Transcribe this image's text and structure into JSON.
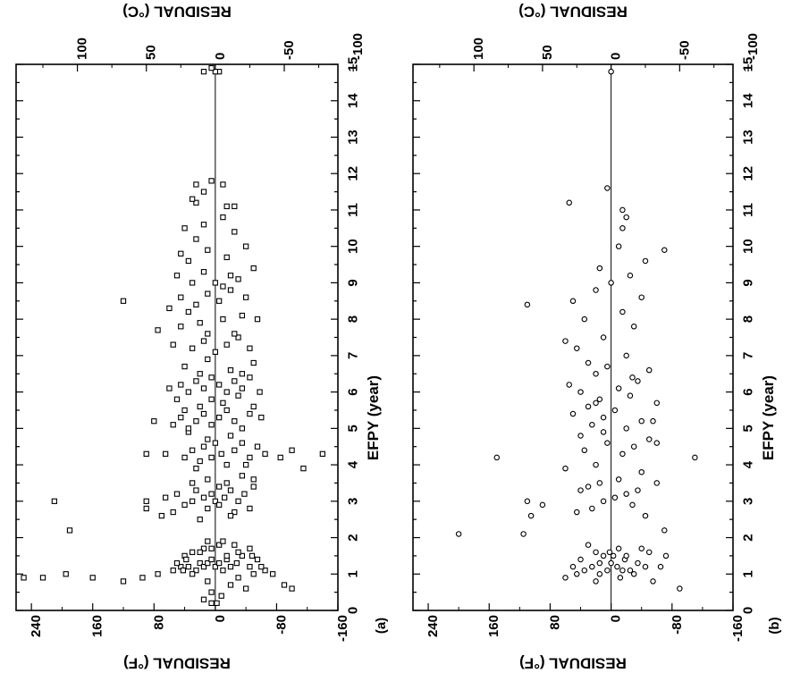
{
  "chart_data": [
    {
      "type": "scatter",
      "panel_label": "(a)",
      "marker": "square",
      "orientation": "figure rotated 90 degrees counter-clockwise",
      "xlabel": "EFPY (year)",
      "ylabel_left": "RESIDUAL (°F)",
      "ylabel_right": "RESIDUAL (°C)",
      "xlim": [
        0,
        15
      ],
      "ylim": [
        -160,
        260
      ],
      "x_ticks": [
        "0",
        "1",
        "2",
        "3",
        "4",
        "5",
        "6",
        "7",
        "8",
        "9",
        "10",
        "11",
        "12",
        "13",
        "14",
        "15"
      ],
      "y_ticks_f": [
        "240",
        "160",
        "80",
        "0",
        "-80",
        "-160"
      ],
      "y_ticks_c": [
        "100",
        "50",
        "0",
        "-50",
        "-100"
      ],
      "zero_line": true,
      "points": [
        [
          0.9,
          250
        ],
        [
          0.9,
          225
        ],
        [
          1.0,
          195
        ],
        [
          0.9,
          160
        ],
        [
          0.8,
          120
        ],
        [
          0.9,
          95
        ],
        [
          1.0,
          75
        ],
        [
          1.1,
          55
        ],
        [
          1.2,
          45
        ],
        [
          1.2,
          35
        ],
        [
          1.1,
          25
        ],
        [
          1.3,
          20
        ],
        [
          1.2,
          15
        ],
        [
          1.3,
          10
        ],
        [
          1.4,
          5
        ],
        [
          1.2,
          0
        ],
        [
          1.3,
          -5
        ],
        [
          1.1,
          -10
        ],
        [
          1.4,
          -15
        ],
        [
          1.2,
          -20
        ],
        [
          1.3,
          -28
        ],
        [
          1.5,
          -35
        ],
        [
          1.2,
          -45
        ],
        [
          1.4,
          -55
        ],
        [
          1.1,
          -65
        ],
        [
          1.0,
          -75
        ],
        [
          0.7,
          -90
        ],
        [
          0.6,
          -100
        ],
        [
          0.8,
          10
        ],
        [
          0.7,
          -20
        ],
        [
          0.5,
          5
        ],
        [
          0.6,
          -40
        ],
        [
          1.6,
          30
        ],
        [
          1.7,
          15
        ],
        [
          1.8,
          -5
        ],
        [
          1.6,
          -30
        ],
        [
          1.7,
          -45
        ],
        [
          1.9,
          10
        ],
        [
          1.5,
          40
        ],
        [
          1.8,
          -25
        ],
        [
          1.5,
          -15
        ],
        [
          1.6,
          20
        ],
        [
          1.4,
          38
        ],
        [
          1.5,
          -48
        ],
        [
          1.9,
          -10
        ],
        [
          1.0,
          30
        ],
        [
          0.9,
          -30
        ],
        [
          1.1,
          42
        ],
        [
          1.0,
          -50
        ],
        [
          1.7,
          5
        ],
        [
          1.3,
          50
        ],
        [
          1.2,
          -60
        ],
        [
          0.3,
          15
        ],
        [
          0.4,
          -8
        ],
        [
          0.2,
          5
        ],
        [
          0.2,
          -2
        ],
        [
          2.2,
          190
        ],
        [
          3.0,
          210
        ],
        [
          2.8,
          90
        ],
        [
          3.0,
          90
        ],
        [
          2.6,
          70
        ],
        [
          3.1,
          65
        ],
        [
          2.7,
          55
        ],
        [
          3.2,
          50
        ],
        [
          2.9,
          40
        ],
        [
          3.0,
          30
        ],
        [
          3.3,
          25
        ],
        [
          3.1,
          15
        ],
        [
          2.8,
          10
        ],
        [
          3.2,
          5
        ],
        [
          3.0,
          0
        ],
        [
          2.9,
          -5
        ],
        [
          3.1,
          -12
        ],
        [
          3.3,
          -20
        ],
        [
          2.7,
          -25
        ],
        [
          3.0,
          -30
        ],
        [
          3.2,
          -38
        ],
        [
          2.8,
          -45
        ],
        [
          3.4,
          -50
        ],
        [
          3.5,
          -15
        ],
        [
          3.6,
          10
        ],
        [
          3.5,
          30
        ],
        [
          3.4,
          -5
        ],
        [
          3.7,
          -35
        ],
        [
          2.6,
          -20
        ],
        [
          2.5,
          20
        ],
        [
          3.6,
          -50
        ],
        [
          4.3,
          90
        ],
        [
          4.3,
          65
        ],
        [
          4.2,
          40
        ],
        [
          4.4,
          30
        ],
        [
          4.1,
          20
        ],
        [
          4.5,
          15
        ],
        [
          4.2,
          5
        ],
        [
          4.6,
          0
        ],
        [
          4.3,
          -8
        ],
        [
          4.0,
          -15
        ],
        [
          4.4,
          -25
        ],
        [
          4.6,
          -35
        ],
        [
          4.2,
          -45
        ],
        [
          4.5,
          -55
        ],
        [
          4.3,
          -65
        ],
        [
          4.2,
          -85
        ],
        [
          3.9,
          -115
        ],
        [
          4.3,
          -140
        ],
        [
          4.4,
          -100
        ],
        [
          4.7,
          10
        ],
        [
          4.8,
          -20
        ],
        [
          4.9,
          35
        ],
        [
          3.9,
          25
        ],
        [
          4.0,
          -40
        ],
        [
          5.2,
          80
        ],
        [
          5.1,
          55
        ],
        [
          5.3,
          45
        ],
        [
          5.0,
          35
        ],
        [
          5.2,
          25
        ],
        [
          5.4,
          15
        ],
        [
          5.1,
          5
        ],
        [
          5.3,
          -5
        ],
        [
          5.5,
          -15
        ],
        [
          5.2,
          -25
        ],
        [
          5.0,
          -35
        ],
        [
          5.4,
          -45
        ],
        [
          5.3,
          -60
        ],
        [
          5.6,
          20
        ],
        [
          5.7,
          -10
        ],
        [
          5.5,
          40
        ],
        [
          5.8,
          50
        ],
        [
          5.9,
          -30
        ],
        [
          5.6,
          -50
        ],
        [
          5.8,
          5
        ],
        [
          6.1,
          60
        ],
        [
          6.2,
          45
        ],
        [
          6.0,
          35
        ],
        [
          6.3,
          25
        ],
        [
          6.1,
          15
        ],
        [
          6.4,
          5
        ],
        [
          6.2,
          -5
        ],
        [
          6.0,
          -15
        ],
        [
          6.3,
          -25
        ],
        [
          6.1,
          -35
        ],
        [
          6.4,
          -45
        ],
        [
          6.0,
          -58
        ],
        [
          6.5,
          20
        ],
        [
          6.6,
          -20
        ],
        [
          6.7,
          40
        ],
        [
          6.8,
          -50
        ],
        [
          6.9,
          10
        ],
        [
          6.5,
          -35
        ],
        [
          7.3,
          55
        ],
        [
          7.2,
          30
        ],
        [
          7.4,
          15
        ],
        [
          7.1,
          0
        ],
        [
          7.3,
          -15
        ],
        [
          7.5,
          -30
        ],
        [
          7.2,
          -45
        ],
        [
          7.6,
          10
        ],
        [
          7.7,
          75
        ],
        [
          7.8,
          45
        ],
        [
          7.9,
          20
        ],
        [
          8.0,
          -10
        ],
        [
          8.1,
          -35
        ],
        [
          8.0,
          -55
        ],
        [
          7.6,
          -25
        ],
        [
          8.2,
          35
        ],
        [
          8.5,
          120
        ],
        [
          8.6,
          45
        ],
        [
          8.4,
          25
        ],
        [
          8.7,
          10
        ],
        [
          8.5,
          -5
        ],
        [
          8.8,
          -20
        ],
        [
          8.6,
          -40
        ],
        [
          8.3,
          60
        ],
        [
          9.0,
          30
        ],
        [
          8.9,
          -10
        ],
        [
          9.2,
          50
        ],
        [
          9.1,
          -30
        ],
        [
          9.3,
          15
        ],
        [
          9.4,
          -50
        ],
        [
          9.2,
          -20
        ],
        [
          9.0,
          0
        ],
        [
          9.6,
          35
        ],
        [
          9.7,
          -15
        ],
        [
          9.9,
          10
        ],
        [
          10.0,
          -40
        ],
        [
          9.8,
          45
        ],
        [
          10.2,
          25
        ],
        [
          10.4,
          -25
        ],
        [
          10.6,
          15
        ],
        [
          10.5,
          40
        ],
        [
          10.8,
          -10
        ],
        [
          11.1,
          -15
        ],
        [
          11.2,
          25
        ],
        [
          11.1,
          -25
        ],
        [
          11.3,
          30
        ],
        [
          11.5,
          15
        ],
        [
          11.7,
          25
        ],
        [
          11.7,
          -10
        ],
        [
          11.8,
          5
        ],
        [
          14.8,
          15
        ],
        [
          14.8,
          -5
        ],
        [
          14.8,
          0
        ],
        [
          14.9,
          5
        ]
      ]
    },
    {
      "type": "scatter",
      "panel_label": "(b)",
      "marker": "circle",
      "orientation": "figure rotated 90 degrees counter-clockwise",
      "xlabel": "EFPY (year)",
      "ylabel_left": "RESIDUAL (°F)",
      "ylabel_right": "RESIDUAL (°C)",
      "xlim": [
        0,
        15
      ],
      "ylim": [
        -160,
        260
      ],
      "x_ticks": [
        "0",
        "1",
        "2",
        "3",
        "4",
        "5",
        "6",
        "7",
        "8",
        "9",
        "10",
        "11",
        "12",
        "13",
        "14",
        "15"
      ],
      "y_ticks_f": [
        "240",
        "160",
        "80",
        "0",
        "-80",
        "-160"
      ],
      "y_ticks_c": [
        "100",
        "50",
        "0",
        "-50",
        "-100"
      ],
      "zero_line": true,
      "points": [
        [
          2.1,
          200
        ],
        [
          2.1,
          115
        ],
        [
          2.6,
          105
        ],
        [
          2.9,
          90
        ],
        [
          3.0,
          110
        ],
        [
          4.2,
          150
        ],
        [
          7.4,
          60
        ],
        [
          8.4,
          110
        ],
        [
          11.2,
          55
        ],
        [
          9.9,
          -70
        ],
        [
          4.2,
          -110
        ],
        [
          0.6,
          -90
        ],
        [
          2.3,
          -160
        ],
        [
          2.2,
          -70
        ],
        [
          1.2,
          -65
        ],
        [
          1.5,
          -72
        ],
        [
          0.8,
          -55
        ],
        [
          0.9,
          60
        ],
        [
          1.0,
          45
        ],
        [
          1.1,
          35
        ],
        [
          1.2,
          25
        ],
        [
          1.0,
          15
        ],
        [
          1.1,
          5
        ],
        [
          1.3,
          0
        ],
        [
          1.2,
          -8
        ],
        [
          1.4,
          -18
        ],
        [
          1.1,
          -25
        ],
        [
          1.3,
          -35
        ],
        [
          1.2,
          -45
        ],
        [
          1.0,
          -30
        ],
        [
          0.9,
          -12
        ],
        [
          1.5,
          10
        ],
        [
          1.6,
          20
        ],
        [
          1.7,
          -10
        ],
        [
          1.5,
          -20
        ],
        [
          1.8,
          30
        ],
        [
          1.4,
          40
        ],
        [
          1.7,
          -40
        ],
        [
          1.6,
          -50
        ],
        [
          0.8,
          20
        ],
        [
          1.3,
          15
        ],
        [
          1.1,
          -15
        ],
        [
          1.2,
          50
        ],
        [
          1.6,
          2
        ],
        [
          1.5,
          -3
        ],
        [
          2.7,
          45
        ],
        [
          2.8,
          25
        ],
        [
          3.0,
          10
        ],
        [
          3.1,
          -5
        ],
        [
          3.2,
          -20
        ],
        [
          3.3,
          -35
        ],
        [
          2.6,
          -45
        ],
        [
          3.4,
          30
        ],
        [
          3.5,
          15
        ],
        [
          3.6,
          -10
        ],
        [
          3.8,
          -40
        ],
        [
          3.5,
          -60
        ],
        [
          3.9,
          60
        ],
        [
          4.0,
          20
        ],
        [
          4.3,
          -15
        ],
        [
          4.4,
          35
        ],
        [
          4.5,
          -30
        ],
        [
          4.6,
          5
        ],
        [
          4.7,
          -50
        ],
        [
          4.8,
          40
        ],
        [
          5.0,
          -20
        ],
        [
          5.1,
          25
        ],
        [
          5.2,
          -40
        ],
        [
          5.3,
          10
        ],
        [
          5.4,
          50
        ],
        [
          5.5,
          -5
        ],
        [
          5.6,
          30
        ],
        [
          5.7,
          -60
        ],
        [
          5.8,
          15
        ],
        [
          5.9,
          -25
        ],
        [
          6.0,
          40
        ],
        [
          6.1,
          -10
        ],
        [
          6.2,
          55
        ],
        [
          6.3,
          -35
        ],
        [
          6.5,
          20
        ],
        [
          6.6,
          -50
        ],
        [
          6.7,
          5
        ],
        [
          6.8,
          30
        ],
        [
          7.0,
          -20
        ],
        [
          7.2,
          45
        ],
        [
          7.5,
          10
        ],
        [
          7.8,
          -30
        ],
        [
          8.0,
          35
        ],
        [
          8.2,
          -15
        ],
        [
          8.5,
          50
        ],
        [
          8.6,
          -40
        ],
        [
          8.8,
          20
        ],
        [
          9.0,
          0
        ],
        [
          9.2,
          -25
        ],
        [
          9.4,
          15
        ],
        [
          9.6,
          -45
        ],
        [
          10.0,
          -10
        ],
        [
          10.5,
          -15
        ],
        [
          10.8,
          -20
        ],
        [
          11.0,
          -15
        ],
        [
          11.6,
          5
        ],
        [
          14.8,
          0
        ],
        [
          5.2,
          -55
        ],
        [
          4.9,
          10
        ],
        [
          4.6,
          -60
        ],
        [
          5.7,
          20
        ],
        [
          6.4,
          -28
        ],
        [
          3.3,
          40
        ],
        [
          2.9,
          -28
        ]
      ]
    }
  ]
}
